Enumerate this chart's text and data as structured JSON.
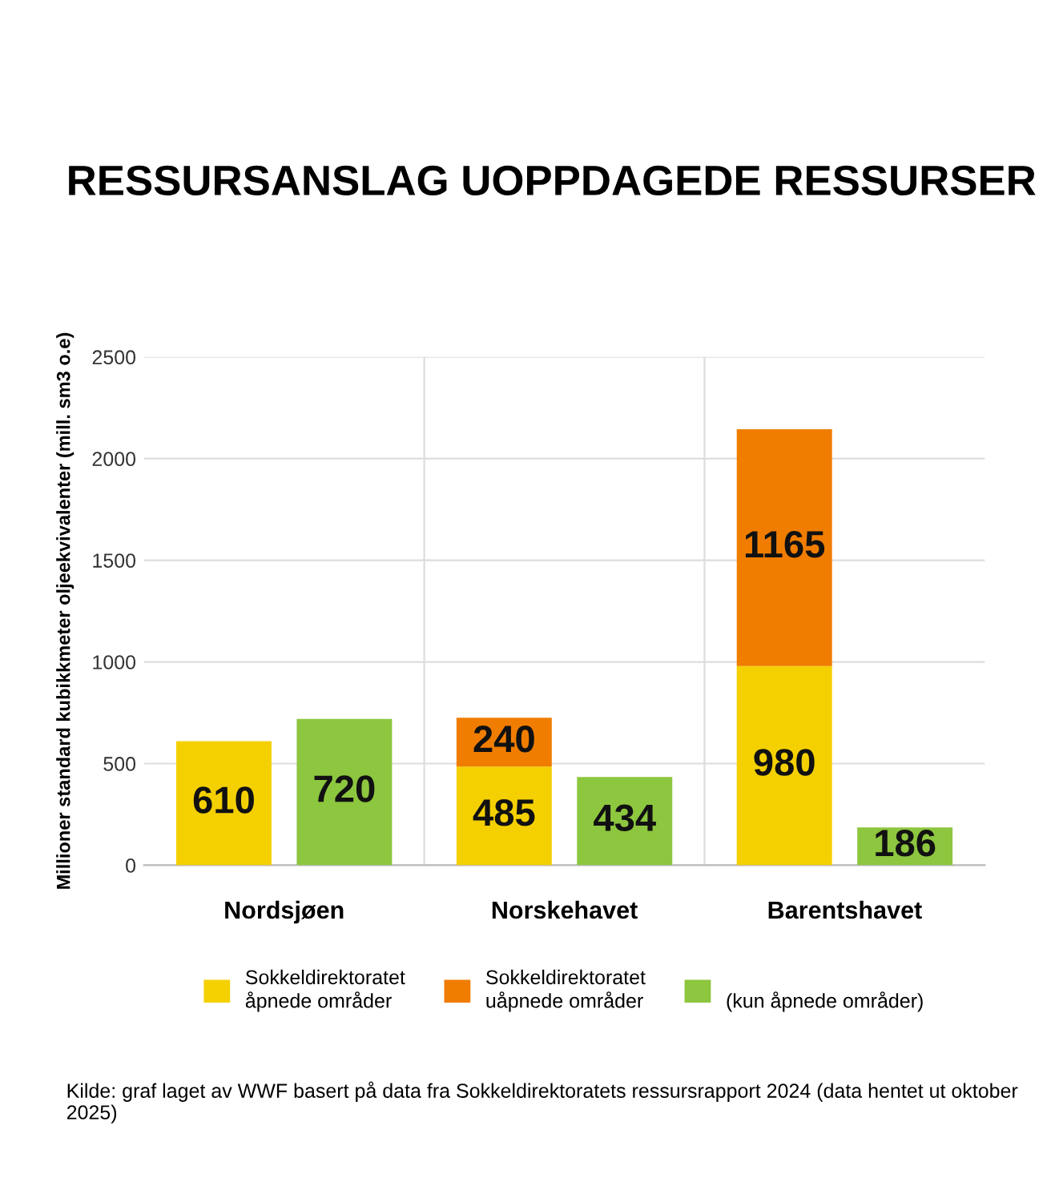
{
  "chart_data": {
    "type": "bar",
    "title": "RESSURSANSLAG UOPPDAGEDE RESSURSER",
    "ylabel": "Millioner standard kubikkmeter oljeekvivalenter (mill. sm3 o.e)",
    "categories": [
      null,
      null,
      null,
      null,
      null,
      null
    ],
    "series": [
      {
        "name": "Sokkeldirektoratet\nåpnede områder",
        "color": "#f5d000",
        "values": [
          610,
          null,
          485,
          null,
          980,
          null
        ]
      },
      {
        "name": "Sokkeldirektoratet\nuåpnede områder",
        "color": "#f07d00",
        "values": [
          null,
          null,
          240,
          null,
          1165,
          null
        ]
      },
      {
        "name": "\n(kun åpnede områder)",
        "color": "#8dc63f",
        "values": [
          null,
          720,
          null,
          434,
          null,
          186
        ]
      }
    ],
    "stacked": true,
    "ylim": [
      0,
      2500
    ],
    "yticks": [
      0,
      500,
      1000,
      1500,
      2000,
      2500
    ],
    "grid": true,
    "legend": "bottom",
    "data_labels": true,
    "annotations": [
      "Nordsjøen",
      "Norskehavet",
      "Barentshavet",
      "Kilde: graf laget av WWF basert på data fra Sokkeldirektoratets ressursrapport 2024 (data hentet ut oktober 2025)"
    ]
  }
}
